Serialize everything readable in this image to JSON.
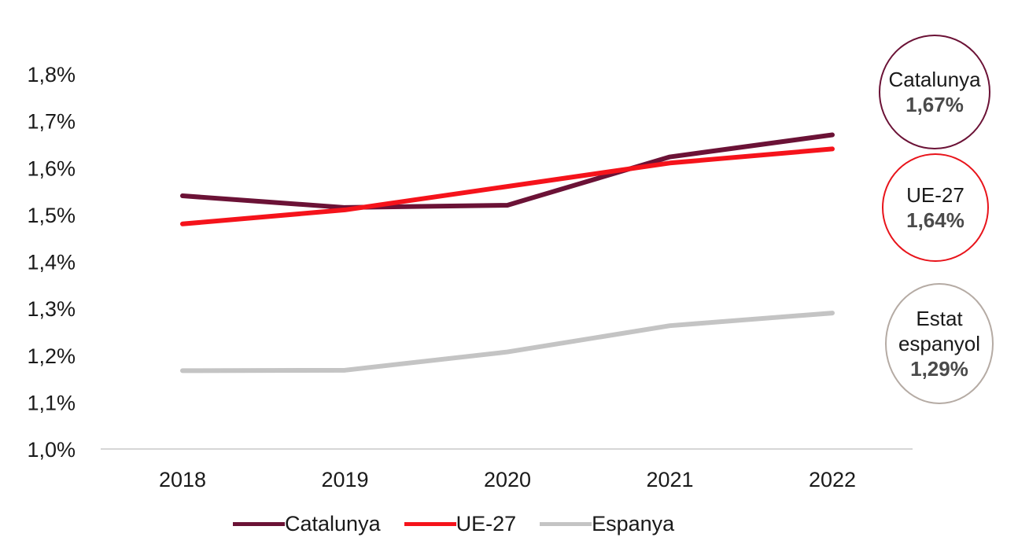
{
  "chart_data": {
    "type": "line",
    "categories": [
      "2018",
      "2019",
      "2020",
      "2021",
      "2022"
    ],
    "y_ticks": [
      "1,0%",
      "1,1%",
      "1,2%",
      "1,3%",
      "1,4%",
      "1,5%",
      "1,6%",
      "1,7%",
      "1,8%"
    ],
    "ylim": [
      1.0,
      1.8
    ],
    "grid": false,
    "legend_position": "bottom",
    "series": [
      {
        "name": "Catalunya",
        "color": "#6b1236",
        "values": [
          1.54,
          1.515,
          1.52,
          1.623,
          1.67
        ]
      },
      {
        "name": "UE-27",
        "color": "#f5131b",
        "values": [
          1.48,
          1.51,
          1.56,
          1.61,
          1.64
        ]
      },
      {
        "name": "Espanya",
        "color": "#c4c4c4",
        "values": [
          1.167,
          1.168,
          1.207,
          1.263,
          1.29
        ]
      }
    ]
  },
  "callouts": {
    "catalunya": {
      "label": "Catalunya",
      "value": "1,67%",
      "color": "#6b1236"
    },
    "ue27": {
      "label": "UE-27",
      "value": "1,64%",
      "color": "#e8141b"
    },
    "espanya": {
      "label_line1": "Estat",
      "label_line2": "espanyol",
      "value": "1,29%",
      "color": "#b5aba4"
    }
  }
}
